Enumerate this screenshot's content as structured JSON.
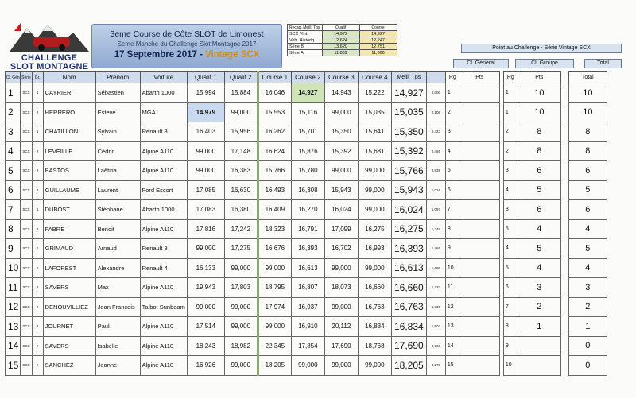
{
  "logo": {
    "line1": "CHALLENGE",
    "line2": "SLOT MONTAGNE"
  },
  "header": {
    "title": "3eme Course de Côte SLOT de Limonest",
    "subtitle": "Seme Manche  du Challenge Slot Montagne 2017",
    "date": "17 Septembre 2017",
    "sep": " - ",
    "category": "Vintage SCX"
  },
  "recap": {
    "headers": [
      "Recap. Meill. Tps",
      "Qualif",
      "Course"
    ],
    "rows": [
      {
        "label": "SCX Vint.",
        "qualif": "14,979",
        "course": "14,927"
      },
      {
        "label": "Veh. Historiq.",
        "qualif": "12,624",
        "course": "12,247"
      },
      {
        "label": "Série B",
        "qualif": "13,620",
        "course": "12,751"
      },
      {
        "label": "Série A",
        "qualif": "11,839",
        "course": "11,866"
      }
    ]
  },
  "challenge": {
    "title": "Point au Challenge - Série  Vintage SCX",
    "general": "Cl. Général",
    "groupe": "Cl. Groupe",
    "total": "Total"
  },
  "columns": [
    "Cl. Gén",
    "Série",
    "Gr.",
    "Nom",
    "Prénom",
    "Voiture",
    "Qualif 1",
    "Qualif 2",
    "Course 1",
    "Course 2",
    "Course 3",
    "Course 4",
    "Meill. Tps",
    "",
    "Rg",
    "Pts",
    "Rg",
    "Pts",
    "Total"
  ],
  "rows": [
    {
      "pos": "1",
      "serie": "SCX",
      "gr": "1",
      "nom": "CAYRIER",
      "prenom": "Sébastien",
      "voiture": "Abarth 1000",
      "q1": "15,994",
      "q2": "15,884",
      "c1": "16,046",
      "c2": "14,927",
      "c3": "14,943",
      "c4": "15,222",
      "best": "14,927",
      "ecart": "0,000",
      "rg": "1",
      "pts": "",
      "grg": "1",
      "gpts": "10",
      "total": "10"
    },
    {
      "pos": "2",
      "serie": "SCX",
      "gr": "2",
      "nom": "HERRERO",
      "prenom": "Esteve",
      "voiture": "MGA",
      "q1": "14,979",
      "q2": "99,000",
      "c1": "15,553",
      "c2": "15,116",
      "c3": "99,000",
      "c4": "15,035",
      "best": "15,035",
      "ecart": "0,108",
      "rg": "2",
      "pts": "",
      "grg": "1",
      "gpts": "10",
      "total": "10"
    },
    {
      "pos": "3",
      "serie": "SCX",
      "gr": "1",
      "nom": "CHATILLON",
      "prenom": "Sylvain",
      "voiture": "Renault 8",
      "q1": "16,403",
      "q2": "15,956",
      "c1": "16,262",
      "c2": "15,701",
      "c3": "15,350",
      "c4": "15,641",
      "best": "15,350",
      "ecart": "0,423",
      "rg": "3",
      "pts": "",
      "grg": "2",
      "gpts": "8",
      "total": "8"
    },
    {
      "pos": "4",
      "serie": "SCX",
      "gr": "2",
      "nom": "LEVEILLE",
      "prenom": "Cédric",
      "voiture": "Alpine A110",
      "q1": "99,000",
      "q2": "17,148",
      "c1": "16,624",
      "c2": "15,876",
      "c3": "15,392",
      "c4": "15,681",
      "best": "15,392",
      "ecart": "0,465",
      "rg": "4",
      "pts": "",
      "grg": "2",
      "gpts": "8",
      "total": "8"
    },
    {
      "pos": "5",
      "serie": "SCX",
      "gr": "2",
      "nom": "BASTOS",
      "prenom": "Laëtitia",
      "voiture": "Alpine A110",
      "q1": "99,000",
      "q2": "16,383",
      "c1": "15,766",
      "c2": "15,780",
      "c3": "99,000",
      "c4": "99,000",
      "best": "15,766",
      "ecart": "0,839",
      "rg": "5",
      "pts": "",
      "grg": "3",
      "gpts": "6",
      "total": "6"
    },
    {
      "pos": "6",
      "serie": "SCX",
      "gr": "2",
      "nom": "GUILLAUME",
      "prenom": "Laurent",
      "voiture": "Ford Escort",
      "q1": "17,085",
      "q2": "16,630",
      "c1": "16,493",
      "c2": "16,308",
      "c3": "15,943",
      "c4": "99,000",
      "best": "15,943",
      "ecart": "1,016",
      "rg": "6",
      "pts": "",
      "grg": "4",
      "gpts": "5",
      "total": "5"
    },
    {
      "pos": "7",
      "serie": "SCX",
      "gr": "1",
      "nom": "DUBOST",
      "prenom": "Stéphane",
      "voiture": "Abarth 1000",
      "q1": "17,083",
      "q2": "16,380",
      "c1": "16,409",
      "c2": "16,270",
      "c3": "16,024",
      "c4": "99,000",
      "best": "16,024",
      "ecart": "1,097",
      "rg": "7",
      "pts": "",
      "grg": "3",
      "gpts": "6",
      "total": "6"
    },
    {
      "pos": "8",
      "serie": "SCX",
      "gr": "2",
      "nom": "FABRE",
      "prenom": "Benoit",
      "voiture": "Alpine A110",
      "q1": "17,816",
      "q2": "17,242",
      "c1": "18,323",
      "c2": "16,791",
      "c3": "17,099",
      "c4": "16,275",
      "best": "16,275",
      "ecart": "1,348",
      "rg": "8",
      "pts": "",
      "grg": "5",
      "gpts": "4",
      "total": "4"
    },
    {
      "pos": "9",
      "serie": "SCX",
      "gr": "1",
      "nom": "GRIMAUD",
      "prenom": "Arnaud",
      "voiture": "Renault 8",
      "q1": "99,000",
      "q2": "17,275",
      "c1": "16,676",
      "c2": "16,393",
      "c3": "16,702",
      "c4": "16,993",
      "best": "16,393",
      "ecart": "1,466",
      "rg": "9",
      "pts": "",
      "grg": "4",
      "gpts": "5",
      "total": "5"
    },
    {
      "pos": "10",
      "serie": "SCX",
      "gr": "1",
      "nom": "LAFOREST",
      "prenom": "Alexandre",
      "voiture": "Renault 4",
      "q1": "16,133",
      "q2": "99,000",
      "c1": "99,000",
      "c2": "16,613",
      "c3": "99,000",
      "c4": "99,000",
      "best": "16,613",
      "ecart": "1,686",
      "rg": "10",
      "pts": "",
      "grg": "5",
      "gpts": "4",
      "total": "4"
    },
    {
      "pos": "11",
      "serie": "SCX",
      "gr": "2",
      "nom": "SAVERS",
      "prenom": "Max",
      "voiture": "Alpine A110",
      "q1": "19,943",
      "q2": "17,803",
      "c1": "18,795",
      "c2": "16,807",
      "c3": "18,073",
      "c4": "16,660",
      "best": "16,660",
      "ecart": "1,733",
      "rg": "11",
      "pts": "",
      "grg": "6",
      "gpts": "3",
      "total": "3"
    },
    {
      "pos": "12",
      "serie": "SCX",
      "gr": "2",
      "nom": "DENOUVILLIEZ",
      "prenom": "Jean François",
      "voiture": "Talbot Sunbeam",
      "q1": "99,000",
      "q2": "99,000",
      "c1": "17,974",
      "c2": "16,937",
      "c3": "99,000",
      "c4": "16,763",
      "best": "16,763",
      "ecart": "1,836",
      "rg": "12",
      "pts": "",
      "grg": "7",
      "gpts": "2",
      "total": "2"
    },
    {
      "pos": "13",
      "serie": "SCX",
      "gr": "2",
      "nom": "JOURNET",
      "prenom": "Paul",
      "voiture": "Alpine A110",
      "q1": "17,514",
      "q2": "99,000",
      "c1": "99,000",
      "c2": "16,910",
      "c3": "20,112",
      "c4": "16,834",
      "best": "16,834",
      "ecart": "1,907",
      "rg": "13",
      "pts": "",
      "grg": "8",
      "gpts": "1",
      "total": "1"
    },
    {
      "pos": "14",
      "serie": "SCX",
      "gr": "2",
      "nom": "SAVERS",
      "prenom": "Isabelle",
      "voiture": "Alpine A110",
      "q1": "18,243",
      "q2": "18,982",
      "c1": "22,345",
      "c2": "17,854",
      "c3": "17,690",
      "c4": "18,768",
      "best": "17,690",
      "ecart": "2,763",
      "rg": "14",
      "pts": "",
      "grg": "9",
      "gpts": "",
      "total": "0"
    },
    {
      "pos": "15",
      "serie": "SCX",
      "gr": "2",
      "nom": "SANCHEZ",
      "prenom": "Jeanne",
      "voiture": "Alpine A110",
      "q1": "16,926",
      "q2": "99,000",
      "c1": "18,205",
      "c2": "99,000",
      "c3": "99,000",
      "c4": "99,000",
      "best": "18,205",
      "ecart": "3,278",
      "rg": "15",
      "pts": "",
      "grg": "10",
      "gpts": "",
      "total": "0"
    }
  ],
  "colors": {
    "header_bg": "#cfdcee",
    "best_green": "#cfe5b8",
    "best_blue": "#c9daf0",
    "separator": "#8eaa5a",
    "banner": "#a9bedf",
    "accent": "#e08a00"
  }
}
